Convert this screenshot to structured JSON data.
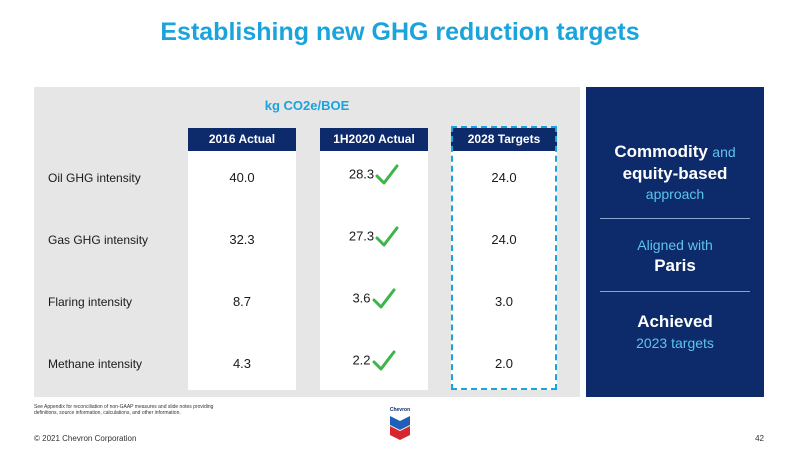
{
  "title": "Establishing new GHG reduction targets",
  "unit": "kg CO2e/BOE",
  "columns": [
    "2016 Actual",
    "1H2020 Actual",
    "2028 Targets"
  ],
  "rows": [
    {
      "label": "Oil GHG intensity",
      "actual_2016": "40.0",
      "actual_1h2020": "28.3",
      "target_2028": "24.0"
    },
    {
      "label": "Gas GHG intensity",
      "actual_2016": "32.3",
      "actual_1h2020": "27.3",
      "target_2028": "24.0"
    },
    {
      "label": "Flaring intensity",
      "actual_2016": "8.7",
      "actual_1h2020": "3.6",
      "target_2028": "3.0"
    },
    {
      "label": "Methane intensity",
      "actual_2016": "4.3",
      "actual_1h2020": "2.2",
      "target_2028": "2.0"
    }
  ],
  "sidebar": {
    "block1": {
      "w1": "Commodity",
      "w2": "and",
      "w3": "equity-based",
      "w4": "approach"
    },
    "block2": {
      "w1": "Aligned with",
      "w2": "Paris"
    },
    "block3": {
      "w1": "Achieved",
      "w2": "2023 targets"
    }
  },
  "footnote": "See Appendix for reconciliation of non-GAAP measures and slide notes providing definitions, source information, calculations, and other information.",
  "logo_text": "Chevron",
  "copyright": "© 2021 Chevron Corporation",
  "page_number": "42",
  "colors": {
    "accent": "#1ba3dc",
    "navy": "#0d2b6b",
    "check": "#3cb54a"
  }
}
